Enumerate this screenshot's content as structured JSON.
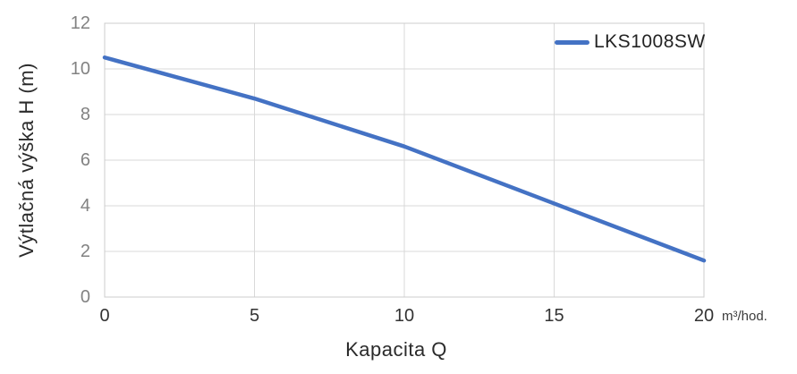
{
  "chart_data": {
    "type": "line",
    "title": "",
    "xlabel": "Kapacita Q",
    "ylabel": "Výtlačná výška H (m)",
    "x_unit": "m³/hod.",
    "x": [
      0,
      5,
      10,
      15,
      20
    ],
    "series": [
      {
        "name": "LKS1008SW",
        "values": [
          10.5,
          8.7,
          6.6,
          4.1,
          1.6
        ]
      }
    ],
    "xlim": [
      0,
      20
    ],
    "ylim": [
      0,
      12
    ],
    "xticks": [
      0,
      5,
      10,
      15,
      20
    ],
    "yticks": [
      0,
      2,
      4,
      6,
      8,
      10,
      12
    ],
    "grid": "both",
    "legend_position": "top-right-inside",
    "colors": {
      "line": "#4472C4",
      "gridline": "#D9D9D9",
      "axis_border": "#CCCCCC",
      "y_tick_text": "#828282",
      "x_tick_text": "#333333",
      "title_text": "#2B2B2B",
      "background": "#FFFFFF"
    }
  }
}
